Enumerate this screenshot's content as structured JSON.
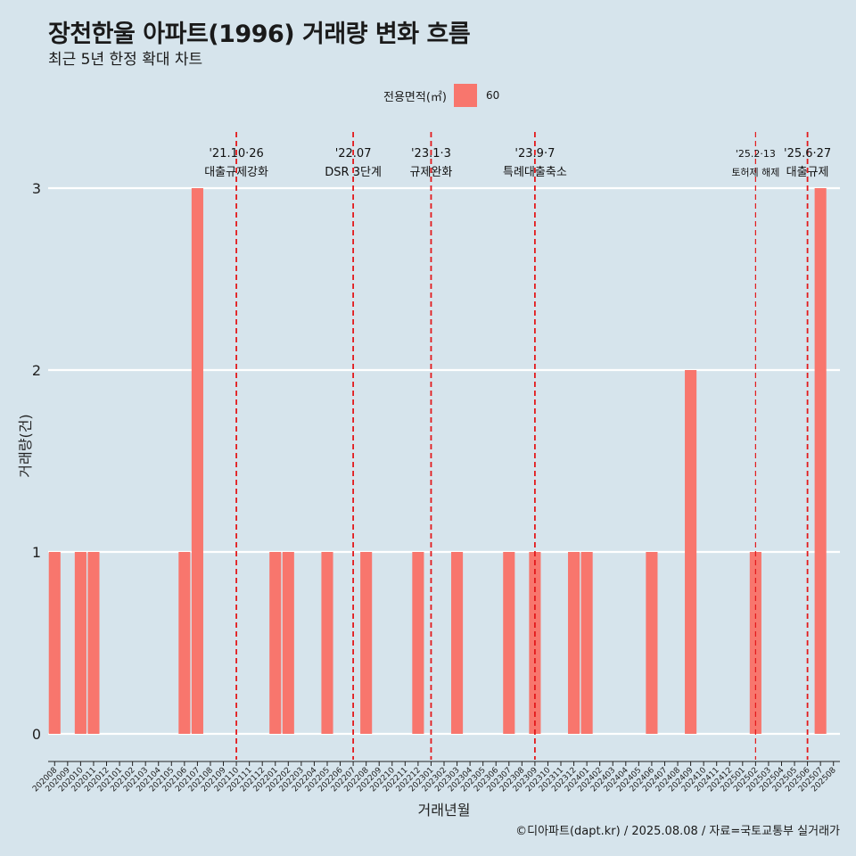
{
  "header": {
    "title": "장천한울 아파트(1996) 거래량 변화 흐름",
    "subtitle": "최근 5년 한정 확대 차트"
  },
  "legend": {
    "title": "전용면적(㎡)",
    "items": [
      {
        "label": "60",
        "color": "#f8766d"
      }
    ]
  },
  "caption": "©디아파트(dapt.kr) / 2025.08.08 / 자료=국토교통부 실거래가",
  "colors": {
    "background": "#d6e4ec",
    "bar": "#f8766d",
    "grid": "#ffffff",
    "event_line": "#e31a1c"
  },
  "chart_data": {
    "type": "bar",
    "xlabel": "거래년월",
    "ylabel": "거래량(건)",
    "ylim": [
      0,
      3
    ],
    "yticks": [
      0,
      1,
      2,
      3
    ],
    "grid": true,
    "legend_position": "top",
    "categories": [
      "202008",
      "202009",
      "202010",
      "202011",
      "202012",
      "202101",
      "202102",
      "202103",
      "202104",
      "202105",
      "202106",
      "202107",
      "202108",
      "202109",
      "202110",
      "202111",
      "202112",
      "202201",
      "202202",
      "202203",
      "202204",
      "202205",
      "202206",
      "202207",
      "202208",
      "202209",
      "202210",
      "202211",
      "202212",
      "202301",
      "202302",
      "202303",
      "202304",
      "202305",
      "202306",
      "202307",
      "202308",
      "202309",
      "202310",
      "202311",
      "202312",
      "202401",
      "202402",
      "202403",
      "202404",
      "202405",
      "202406",
      "202407",
      "202408",
      "202409",
      "202410",
      "202411",
      "202412",
      "202501",
      "202502",
      "202503",
      "202504",
      "202505",
      "202506",
      "202507",
      "202508"
    ],
    "series": [
      {
        "name": "60",
        "values": [
          {
            "x": "202008",
            "y": 1
          },
          {
            "x": "202010",
            "y": 1
          },
          {
            "x": "202011",
            "y": 1
          },
          {
            "x": "202106",
            "y": 1
          },
          {
            "x": "202107",
            "y": 3
          },
          {
            "x": "202201",
            "y": 1
          },
          {
            "x": "202202",
            "y": 1
          },
          {
            "x": "202205",
            "y": 1
          },
          {
            "x": "202208",
            "y": 1
          },
          {
            "x": "202212",
            "y": 1
          },
          {
            "x": "202303",
            "y": 1
          },
          {
            "x": "202307",
            "y": 1
          },
          {
            "x": "202309",
            "y": 1
          },
          {
            "x": "202312",
            "y": 1
          },
          {
            "x": "202401",
            "y": 1
          },
          {
            "x": "202406",
            "y": 1
          },
          {
            "x": "202409",
            "y": 2
          },
          {
            "x": "202502",
            "y": 1
          },
          {
            "x": "202507",
            "y": 3
          }
        ]
      }
    ],
    "annotations": [
      {
        "x": "202110",
        "date": "'21.10·26",
        "label": "대출규제강화",
        "small": false
      },
      {
        "x": "202207",
        "date": "'22.07",
        "label": "DSR 3단계",
        "small": false
      },
      {
        "x": "202301",
        "date": "'23.1·3",
        "label": "규제완화",
        "small": false
      },
      {
        "x": "202309",
        "date": "'23.9·7",
        "label": "특례대출축소",
        "small": false
      },
      {
        "x": "202502",
        "date": "'25.2·13",
        "label": "토허제 해제",
        "small": true
      },
      {
        "x": "202506",
        "date": "'25.6·27",
        "label": "대출규제",
        "small": false
      }
    ]
  }
}
